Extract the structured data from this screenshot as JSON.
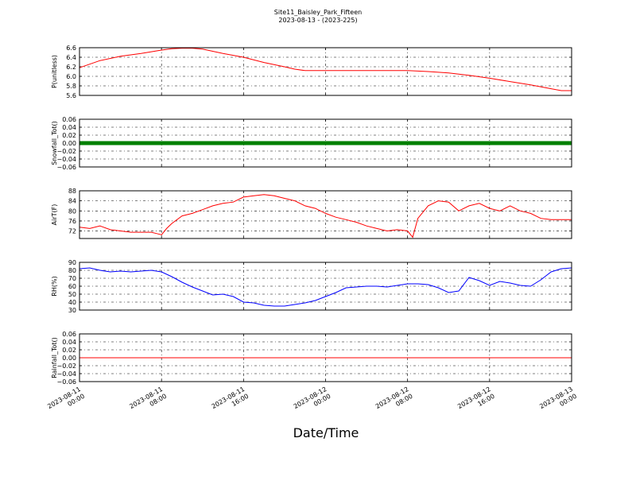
{
  "title_line1": "Site11_Baisley_Park_Fifteen",
  "title_line2": "2023-08-13 - (2023-225)",
  "xlabel": "Date/Time",
  "x_ticks": [
    {
      "line1": "2023-08-11",
      "line2": "00:00"
    },
    {
      "line1": "2023-08-11",
      "line2": "08:00"
    },
    {
      "line1": "2023-08-11",
      "line2": "16:00"
    },
    {
      "line1": "2023-08-12",
      "line2": "00:00"
    },
    {
      "line1": "2023-08-12",
      "line2": "08:00"
    },
    {
      "line1": "2023-08-12",
      "line2": "16:00"
    },
    {
      "line1": "2023-08-13",
      "line2": "00:00"
    }
  ],
  "chart_data": [
    {
      "type": "line",
      "ylabel": "P(unitless)",
      "ylim": [
        5.6,
        6.6
      ],
      "yticks": [
        "6.6",
        "6.4",
        "6.2",
        "6.0",
        "5.8",
        "5.6"
      ],
      "grid": true,
      "color": "#ff0000",
      "series": [
        {
          "x_hours": [
            0,
            2,
            4,
            6,
            8,
            9,
            10,
            11,
            12,
            14,
            16,
            18,
            20,
            21,
            22,
            24,
            28,
            32,
            34,
            36,
            38,
            40,
            42,
            44,
            46,
            47,
            48
          ],
          "values": [
            6.18,
            6.33,
            6.42,
            6.48,
            6.55,
            6.58,
            6.59,
            6.59,
            6.57,
            6.48,
            6.4,
            6.29,
            6.2,
            6.15,
            6.12,
            6.12,
            6.12,
            6.12,
            6.1,
            6.07,
            6.02,
            5.96,
            5.89,
            5.82,
            5.74,
            5.7,
            5.7
          ]
        }
      ]
    },
    {
      "type": "scatter",
      "ylabel": "Snowfall_Tot()",
      "ylim": [
        -0.06,
        0.06
      ],
      "yticks": [
        "0.06",
        "0.04",
        "0.02",
        "0.00",
        "−0.02",
        "−0.04",
        "−0.06"
      ],
      "grid": true,
      "color": "#008000",
      "series": [
        {
          "constant_value": 0.0,
          "x_range_hours": [
            0,
            48
          ]
        }
      ]
    },
    {
      "type": "line",
      "ylabel": "AirT(F)",
      "ylim": [
        69,
        88
      ],
      "yticks": [
        "88",
        "84",
        "80",
        "76",
        "72"
      ],
      "grid": true,
      "color": "#ff0000",
      "series": [
        {
          "x_hours": [
            0,
            1,
            2,
            3,
            4,
            5,
            6,
            7,
            7.5,
            8,
            8.5,
            9,
            10,
            11,
            12,
            13,
            14,
            15,
            16,
            17,
            18,
            19,
            20,
            21,
            22,
            23,
            24,
            25,
            26,
            27,
            28,
            29,
            30,
            31,
            32,
            32.5,
            33,
            34,
            35,
            36,
            37,
            38,
            39,
            40,
            41,
            42,
            43,
            44,
            45,
            46,
            47,
            48
          ],
          "values": [
            73.5,
            73,
            74,
            72.5,
            72,
            71.5,
            71.5,
            71.5,
            71,
            70.5,
            73,
            75,
            78,
            79,
            80.5,
            82,
            83,
            83.5,
            85.5,
            86,
            86.5,
            86,
            85,
            84,
            82,
            81,
            79,
            77.5,
            76.5,
            75.5,
            74,
            73,
            72,
            72.5,
            72,
            69.5,
            77,
            82,
            84,
            83.5,
            80,
            82,
            83,
            81,
            80,
            82,
            80,
            79,
            77,
            76.5,
            76.5,
            76.5
          ]
        }
      ]
    },
    {
      "type": "line",
      "ylabel": "RH(%)",
      "ylim": [
        30,
        90
      ],
      "yticks": [
        "90",
        "80",
        "70",
        "60",
        "50",
        "40",
        "30"
      ],
      "grid": true,
      "color": "#0000ff",
      "series": [
        {
          "x_hours": [
            0,
            1,
            2,
            3,
            4,
            5,
            6,
            7,
            8,
            9,
            10,
            11,
            12,
            13,
            14,
            15,
            16,
            17,
            18,
            19,
            20,
            21,
            22,
            23,
            24,
            25,
            26,
            27,
            28,
            29,
            30,
            31,
            32,
            33,
            34,
            35,
            36,
            37,
            38,
            39,
            40,
            41,
            42,
            43,
            44,
            45,
            46,
            47,
            48
          ],
          "values": [
            82,
            83,
            80,
            78,
            79,
            78,
            79,
            80,
            78,
            72,
            65,
            59,
            54,
            49,
            50,
            47,
            40,
            39,
            36,
            35,
            35,
            37,
            39,
            42,
            47,
            52,
            58,
            59,
            60,
            60,
            59,
            61,
            63,
            63,
            62,
            58,
            52,
            54,
            71,
            67,
            61,
            66,
            64,
            61,
            60,
            68,
            78,
            82,
            83
          ]
        }
      ]
    },
    {
      "type": "line",
      "ylabel": "Rainfall_Tot()",
      "ylim": [
        -0.06,
        0.06
      ],
      "yticks": [
        "0.06",
        "0.04",
        "0.02",
        "0.00",
        "−0.02",
        "−0.04",
        "−0.06"
      ],
      "grid": true,
      "color": "#ff0000",
      "series": [
        {
          "x_hours": [
            0,
            48
          ],
          "values": [
            0.0,
            0.0
          ]
        }
      ]
    }
  ]
}
